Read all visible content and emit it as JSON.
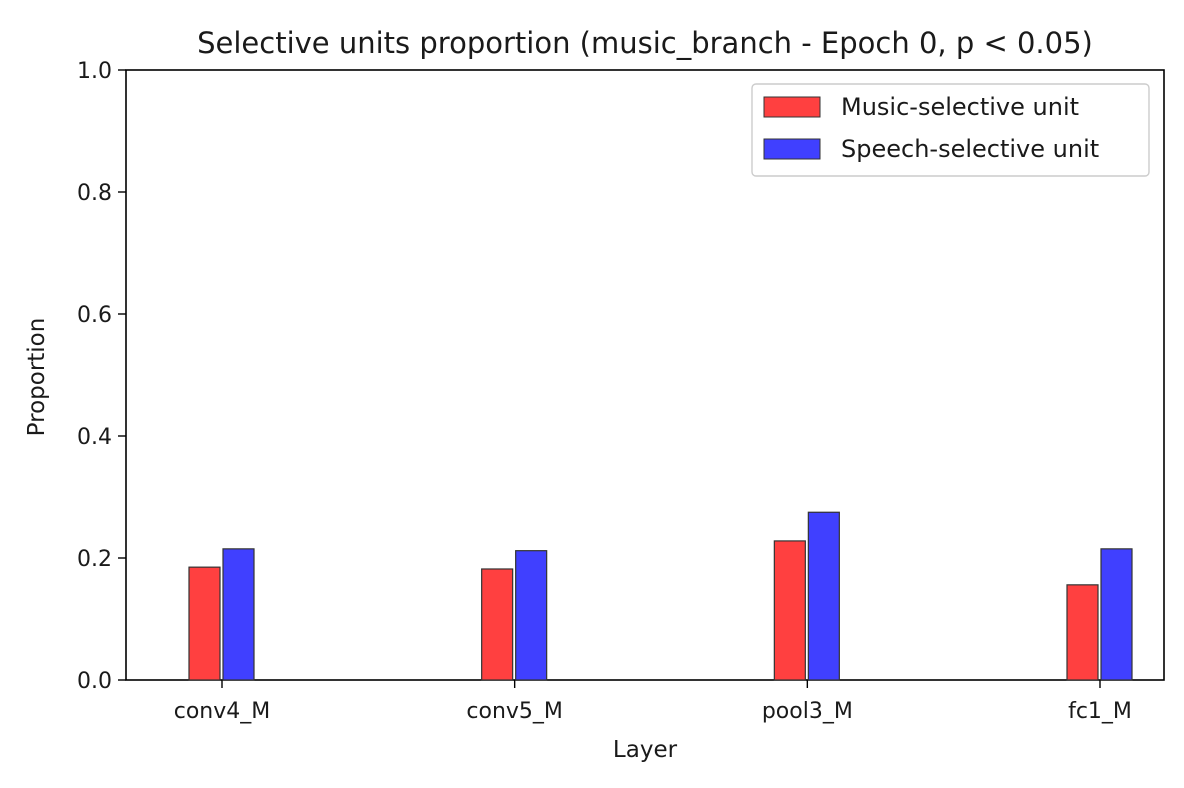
{
  "chart_data": {
    "type": "bar",
    "title": "Selective units proportion (music_branch - Epoch 0, p < 0.05)",
    "xlabel": "Layer",
    "ylabel": "Proportion",
    "categories": [
      "conv4_M",
      "conv5_M",
      "pool3_M",
      "fc1_M"
    ],
    "ylim": [
      0,
      1.0
    ],
    "yticks": [
      "0.0",
      "0.2",
      "0.4",
      "0.6",
      "0.8",
      "1.0"
    ],
    "series": [
      {
        "name": "Music-selective unit",
        "color": "#ff4040",
        "values": [
          0.185,
          0.182,
          0.228,
          0.156
        ]
      },
      {
        "name": "Speech-selective unit",
        "color": "#4040ff",
        "values": [
          0.215,
          0.212,
          0.275,
          0.215
        ]
      }
    ],
    "grid": false,
    "legend": "top-right"
  }
}
